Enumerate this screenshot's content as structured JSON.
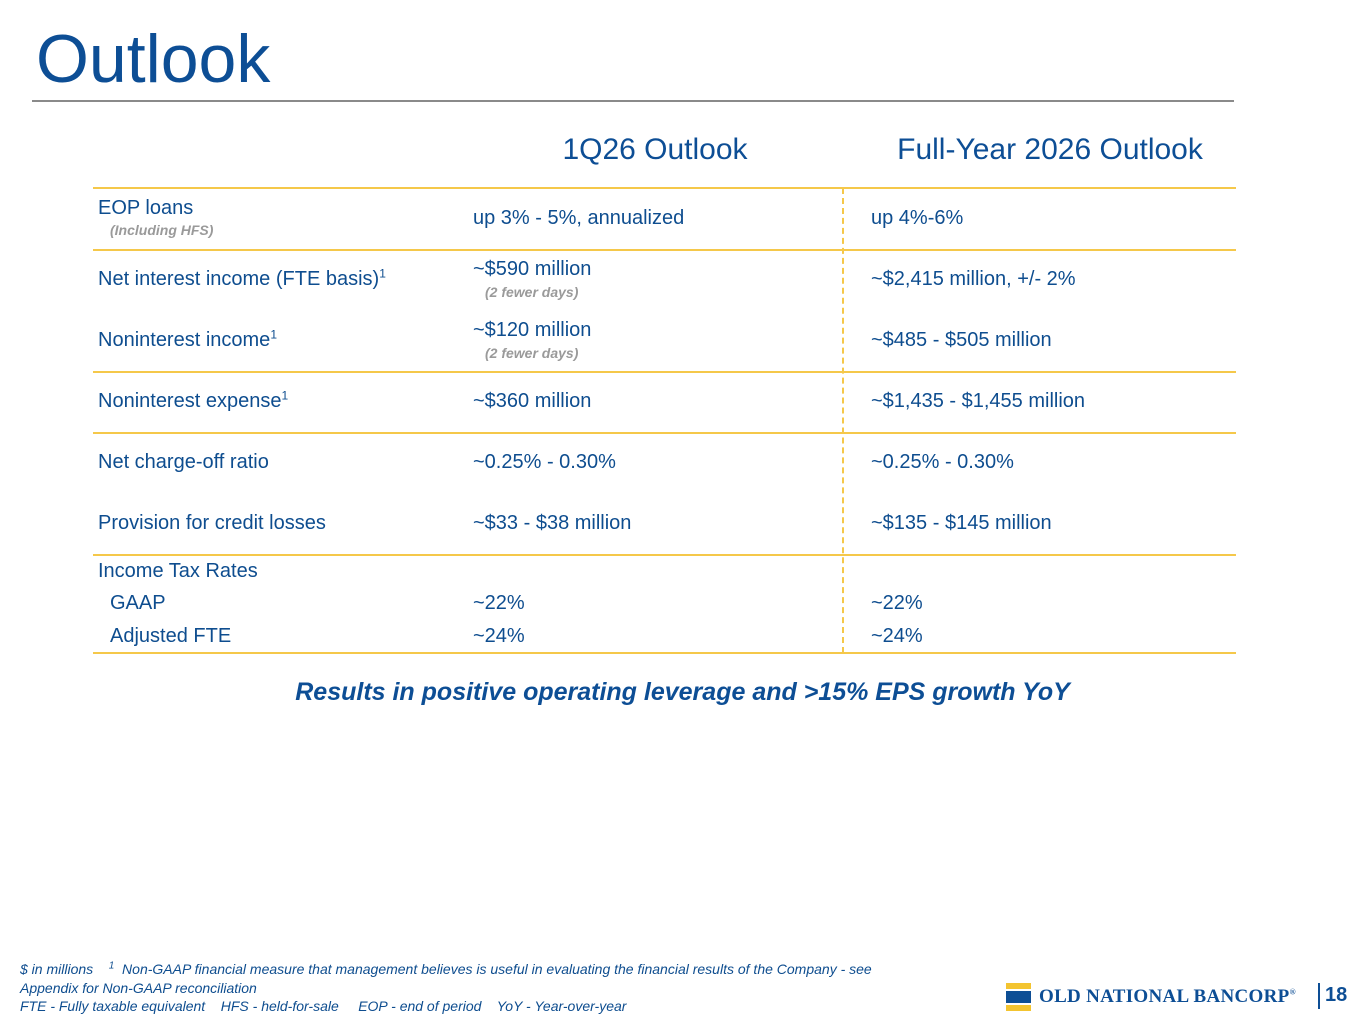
{
  "title": "Outlook",
  "columns": {
    "q": "1Q26 Outlook",
    "fy": "Full-Year 2026 Outlook"
  },
  "rows": {
    "eop": {
      "label": "EOP loans",
      "note": "(Including HFS)",
      "q": "up 3% - 5%, annualized",
      "fy": "up 4%-6%"
    },
    "nii": {
      "label": "Net interest income (FTE basis)",
      "sup": "1",
      "q": "~$590 million",
      "q_note": "(2 fewer days)",
      "fy": "~$2,415 million, +/- 2%"
    },
    "nonint_income": {
      "label": "Noninterest income",
      "sup": "1",
      "q": "~$120 million",
      "q_note": "(2 fewer days)",
      "fy": "~$485 - $505 million"
    },
    "nonint_expense": {
      "label": "Noninterest expense",
      "sup": "1",
      "q": "~$360 million",
      "fy": "~$1,435 - $1,455 million"
    },
    "nco": {
      "label": "Net charge-off ratio",
      "q": "~0.25% - 0.30%",
      "fy": "~0.25% - 0.30%"
    },
    "provision": {
      "label": "Provision for credit losses",
      "q": "~$33 - $38 million",
      "fy": "~$135 - $145 million"
    },
    "tax": {
      "label": "Income Tax Rates",
      "gaap": {
        "label": "GAAP",
        "q": "~22%",
        "fy": "~22%"
      },
      "adj": {
        "label": "Adjusted FTE",
        "q": "~24%",
        "fy": "~24%"
      }
    }
  },
  "tagline": "Results in positive operating leverage and >15% EPS growth YoY",
  "footnotes": {
    "line1_a": "$ in millions",
    "line1_sup": "1",
    "line1_b": "Non-GAAP financial measure that management believes is useful in evaluating the financial results of the Company - see",
    "line2": "Appendix for Non-GAAP reconciliation",
    "line3": "FTE - Fully taxable equivalent    HFS - held-for-sale     EOP - end of period    YoY - Year-over-year"
  },
  "brand": {
    "name": "OLD NATIONAL BANCORP",
    "mark": "®"
  },
  "page_number": "18",
  "colors": {
    "brand_blue": "#0d4e95",
    "accent_gold": "#f5c84a",
    "rule_gray": "#8a8a8a",
    "note_gray": "#9a9a9a"
  }
}
